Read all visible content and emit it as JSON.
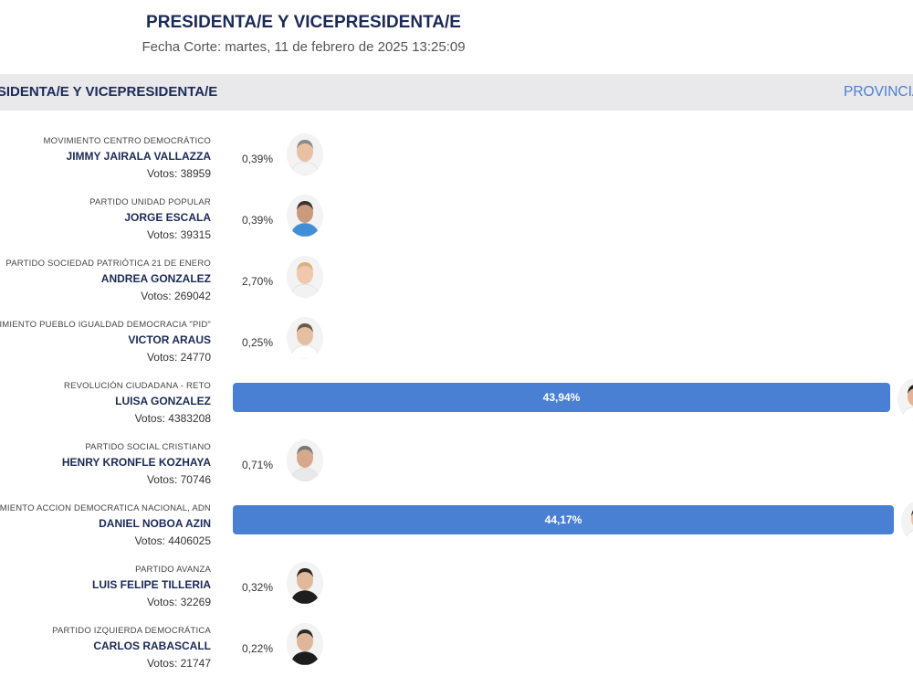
{
  "header": {
    "title": "PRESIDENTA/E Y VICEPRESIDENTA/E",
    "cutoff": "Fecha Corte: martes, 11 de febrero de 2025 13:25:09"
  },
  "tabs": {
    "left": "PRESIDENTA/E Y VICEPRESIDENTA/E",
    "right": "PROVINCIA"
  },
  "colors": {
    "bar": "#4a80d4",
    "navy": "#1b2a57",
    "link": "#4a7fd4"
  },
  "candidates": [
    {
      "party": "MOVIMIENTO CENTRO DEMOCRÁTICO",
      "name": "JIMMY JAIRALA VALLAZZA",
      "votes": "Votos: 38959",
      "pct": "0,39%",
      "share": 0.39,
      "hair": "#8a8a8a",
      "skin": "#e8c0a4",
      "shirt": "#f4f4f4"
    },
    {
      "party": "PARTIDO UNIDAD POPULAR",
      "name": "JORGE ESCALA",
      "votes": "Votos: 39315",
      "pct": "0,39%",
      "share": 0.39,
      "hair": "#3a3330",
      "skin": "#c99a7c",
      "shirt": "#3f8fd8"
    },
    {
      "party": "PARTIDO SOCIEDAD PATRIÓTICA 21 DE ENERO",
      "name": "ANDREA GONZALEZ",
      "votes": "Votos: 269042",
      "pct": "2,70%",
      "share": 2.7,
      "hair": "#d9b17a",
      "skin": "#f0c8ae",
      "shirt": "#f2f2f2"
    },
    {
      "party": "MOVIMIENTO PUEBLO IGUALDAD DEMOCRACIA \"PID\"",
      "name": "VICTOR ARAUS",
      "votes": "Votos: 24770",
      "pct": "0,25%",
      "share": 0.25,
      "hair": "#6b5a4c",
      "skin": "#e6bea2",
      "shirt": "#ffffff"
    },
    {
      "party": "REVOLUCIÓN CIUDADANA - RETO",
      "name": "LUISA GONZALEZ",
      "votes": "Votos: 4383208",
      "pct": "43,94%",
      "share": 43.94,
      "hair": "#222222",
      "skin": "#e2b495",
      "shirt": "#ffffff"
    },
    {
      "party": "PARTIDO SOCIAL CRISTIANO",
      "name": "HENRY KRONFLE KOZHAYA",
      "votes": "Votos: 70746",
      "pct": "0,71%",
      "share": 0.71,
      "hair": "#777777",
      "skin": "#d6a98c",
      "shirt": "#e9e9e9"
    },
    {
      "party": "MOVIMIENTO ACCION DEMOCRATICA NACIONAL, ADN",
      "name": "DANIEL NOBOA AZIN",
      "votes": "Votos: 4406025",
      "pct": "44,17%",
      "share": 44.17,
      "hair": "#333333",
      "skin": "#e8c0a4",
      "shirt": "#ffffff"
    },
    {
      "party": "PARTIDO AVANZA",
      "name": "LUIS FELIPE TILLERIA",
      "votes": "Votos: 32269",
      "pct": "0,32%",
      "share": 0.32,
      "hair": "#2c241f",
      "skin": "#e2b89b",
      "shirt": "#1e1e1e"
    },
    {
      "party": "PARTIDO IZQUIERDA DEMOCRÁTICA",
      "name": "CARLOS RABASCALL",
      "votes": "Votos: 21747",
      "pct": "0,22%",
      "share": 0.22,
      "hair": "#2a2a2a",
      "skin": "#e0b69a",
      "shirt": "#1c1c1c"
    }
  ]
}
